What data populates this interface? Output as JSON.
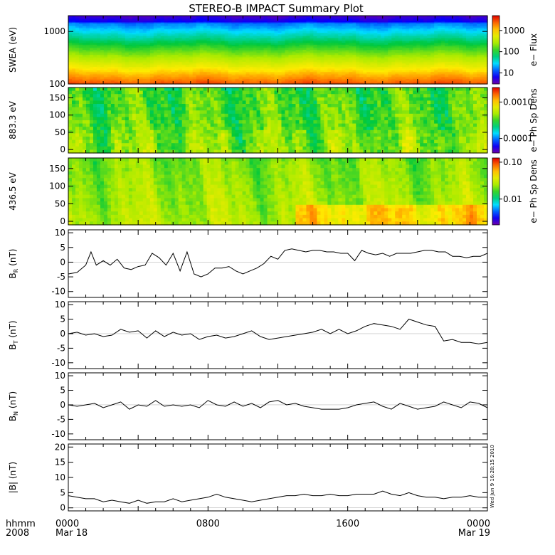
{
  "title": "STEREO-B IMPACT Summary Plot",
  "timestamp_label": "Wed Jun  9 16:28:15 2010",
  "time_axis": {
    "corner_top": "hhmm",
    "corner_bottom": "2008",
    "ticks": [
      {
        "hour": 0,
        "label": "0000",
        "date": "Mar 18"
      },
      {
        "hour": 8,
        "label": "0800",
        "date": ""
      },
      {
        "hour": 16,
        "label": "1600",
        "date": ""
      },
      {
        "hour": 24,
        "label": "0000",
        "date": "Mar 19"
      }
    ]
  },
  "chart_data": [
    {
      "type": "heatmap",
      "panel": "swea",
      "ylabel": "SWEA (eV)",
      "yscale": "log",
      "ylim": [
        100,
        2000
      ],
      "yticks": [
        {
          "v": 100,
          "label": "100"
        },
        {
          "v": 1000,
          "label": "1000"
        }
      ],
      "colorbar": {
        "label": "e− Flux",
        "scale": "log",
        "range": [
          3,
          5000
        ],
        "ticks": [
          {
            "v": 10,
            "label": "10"
          },
          {
            "v": 100,
            "label": "100"
          },
          {
            "v": 1000,
            "label": "1000"
          }
        ]
      },
      "xlim": [
        0,
        24
      ]
    },
    {
      "type": "heatmap",
      "panel": "pad883",
      "ylabel": "883.3 eV",
      "ylim": [
        -10,
        180
      ],
      "yticks": [
        {
          "v": 0,
          "label": "0"
        },
        {
          "v": 50,
          "label": "50"
        },
        {
          "v": 100,
          "label": "100"
        },
        {
          "v": 150,
          "label": "150"
        }
      ],
      "colorbar": {
        "label": "e− Ph Sp Dens",
        "scale": "log",
        "range": [
          4e-05,
          0.0025
        ],
        "ticks": [
          {
            "v": 0.0001,
            "label": "0.0001"
          },
          {
            "v": 0.001,
            "label": "0.0010"
          }
        ]
      },
      "xlim": [
        0,
        24
      ]
    },
    {
      "type": "heatmap",
      "panel": "pad436",
      "ylabel": "436.5 eV",
      "ylim": [
        -10,
        180
      ],
      "yticks": [
        {
          "v": 0,
          "label": "0"
        },
        {
          "v": 50,
          "label": "50"
        },
        {
          "v": 100,
          "label": "100"
        },
        {
          "v": 150,
          "label": "150"
        }
      ],
      "colorbar": {
        "label": "e− Ph Sp Dens",
        "scale": "log",
        "range": [
          0.002,
          0.13
        ],
        "ticks": [
          {
            "v": 0.01,
            "label": "0.01"
          },
          {
            "v": 0.1,
            "label": "0.10"
          }
        ]
      },
      "xlim": [
        0,
        24
      ]
    },
    {
      "type": "line",
      "panel": "br",
      "ylabel_main": "B",
      "ylabel_sub": "R",
      "ylabel_unit": " (nT)",
      "ylim": [
        -12,
        11
      ],
      "yticks": [
        -10,
        -5,
        0,
        5,
        10
      ],
      "x": [
        0,
        0.5,
        1,
        1.3,
        1.6,
        2,
        2.4,
        2.8,
        3.2,
        3.6,
        4,
        4.4,
        4.8,
        5.2,
        5.6,
        6,
        6.4,
        6.8,
        7.2,
        7.6,
        8,
        8.4,
        8.8,
        9.2,
        9.6,
        10,
        10.4,
        10.8,
        11.2,
        11.6,
        12,
        12.4,
        12.8,
        13.2,
        13.6,
        14,
        14.4,
        14.8,
        15.2,
        15.6,
        16,
        16.4,
        16.8,
        17.2,
        17.6,
        18,
        18.4,
        18.8,
        19.2,
        19.6,
        20,
        20.4,
        20.8,
        21.2,
        21.6,
        22,
        22.4,
        22.8,
        23.2,
        23.6,
        24
      ],
      "values": [
        -4,
        -3.5,
        -1,
        3.5,
        -1,
        0.5,
        -1,
        1,
        -2,
        -2.5,
        -1.5,
        -1,
        3,
        1.5,
        -1,
        3,
        -3,
        3.5,
        -4,
        -5,
        -4,
        -2,
        -2,
        -1.5,
        -3,
        -4,
        -3,
        -2,
        -0.5,
        2,
        1,
        4,
        4.5,
        4,
        3.5,
        4,
        4,
        3.5,
        3.5,
        3,
        3,
        0.5,
        4,
        3,
        2.5,
        3,
        2,
        3,
        3,
        3,
        3.5,
        4,
        4,
        3.5,
        3.5,
        2,
        2,
        1.5,
        2,
        2,
        3
      ]
    },
    {
      "type": "line",
      "panel": "bt",
      "ylabel_main": "B",
      "ylabel_sub": "T",
      "ylabel_unit": " (nT)",
      "ylim": [
        -12,
        11
      ],
      "yticks": [
        -10,
        -5,
        0,
        5,
        10
      ],
      "x": [
        0,
        0.5,
        1,
        1.5,
        2,
        2.5,
        3,
        3.5,
        4,
        4.5,
        5,
        5.5,
        6,
        6.5,
        7,
        7.5,
        8,
        8.5,
        9,
        9.5,
        10,
        10.5,
        11,
        11.5,
        12,
        12.5,
        13,
        13.5,
        14,
        14.5,
        15,
        15.5,
        16,
        16.5,
        17,
        17.5,
        18,
        18.5,
        19,
        19.5,
        20,
        20.5,
        21,
        21.5,
        22,
        22.5,
        23,
        23.5,
        24
      ],
      "values": [
        0,
        0.5,
        -0.5,
        0,
        -1,
        -0.5,
        1.5,
        0.5,
        1,
        -1.5,
        1,
        -1,
        0.5,
        -0.5,
        0,
        -2,
        -1,
        -0.5,
        -1.5,
        -1,
        0,
        1,
        -1,
        -2,
        -1.5,
        -1,
        -0.5,
        0,
        0.5,
        1.5,
        0,
        1.5,
        0,
        1,
        2.5,
        3.5,
        3,
        2.5,
        1.5,
        5,
        4,
        3,
        2.5,
        -2.5,
        -2,
        -3,
        -3,
        -3.5,
        -3
      ]
    },
    {
      "type": "line",
      "panel": "bn",
      "ylabel_main": "B",
      "ylabel_sub": "N",
      "ylabel_unit": " (nT)",
      "ylim": [
        -12,
        11
      ],
      "yticks": [
        -10,
        -5,
        0,
        5,
        10
      ],
      "x": [
        0,
        0.5,
        1,
        1.5,
        2,
        2.5,
        3,
        3.5,
        4,
        4.5,
        5,
        5.5,
        6,
        6.5,
        7,
        7.5,
        8,
        8.5,
        9,
        9.5,
        10,
        10.5,
        11,
        11.5,
        12,
        12.5,
        13,
        13.5,
        14,
        14.5,
        15,
        15.5,
        16,
        16.5,
        17,
        17.5,
        18,
        18.5,
        19,
        19.5,
        20,
        20.5,
        21,
        21.5,
        22,
        22.5,
        23,
        23.5,
        24
      ],
      "values": [
        0,
        -0.5,
        0,
        0.5,
        -1,
        0,
        1,
        -1.5,
        0,
        -0.5,
        1.5,
        -0.5,
        0,
        -0.5,
        0,
        -1,
        1.5,
        0,
        -0.5,
        1,
        -0.5,
        0.5,
        -1,
        1,
        1.5,
        0,
        0.5,
        -0.5,
        -1,
        -1.5,
        -1.5,
        -1.5,
        -1,
        0,
        0.5,
        1,
        -0.5,
        -1.5,
        0.5,
        -0.5,
        -1.5,
        -1,
        -0.5,
        1,
        0,
        -1,
        1,
        0.5,
        -1
      ]
    },
    {
      "type": "line",
      "panel": "bmag",
      "ylabel_main": "|B| (nT)",
      "ylim": [
        -1,
        21
      ],
      "yticks": [
        0,
        5,
        10,
        15,
        20
      ],
      "x": [
        0,
        0.5,
        1,
        1.5,
        2,
        2.5,
        3,
        3.5,
        4,
        4.5,
        5,
        5.5,
        6,
        6.5,
        7,
        7.5,
        8,
        8.5,
        9,
        9.5,
        10,
        10.5,
        11,
        11.5,
        12,
        12.5,
        13,
        13.5,
        14,
        14.5,
        15,
        15.5,
        16,
        16.5,
        17,
        17.5,
        18,
        18.5,
        19,
        19.5,
        20,
        20.5,
        21,
        21.5,
        22,
        22.5,
        23,
        23.5,
        24
      ],
      "values": [
        4,
        3.5,
        3,
        3,
        2,
        2.5,
        2,
        1.5,
        2.5,
        1.5,
        2,
        2,
        3,
        2,
        2.5,
        3,
        3.5,
        4.5,
        3.5,
        3,
        2.5,
        2,
        2.5,
        3,
        3.5,
        4,
        4,
        4.5,
        4,
        4,
        4.5,
        4,
        4,
        4.5,
        4.5,
        4.5,
        5.5,
        4.5,
        4,
        5,
        4,
        3.5,
        3.5,
        3,
        3.5,
        3.5,
        4,
        3.5,
        3.5
      ]
    }
  ]
}
